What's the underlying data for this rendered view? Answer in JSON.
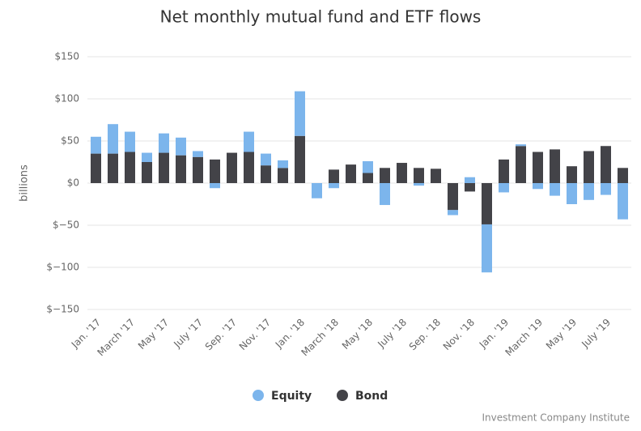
{
  "chart_data": {
    "type": "stacked_bar",
    "title": "Net monthly mutual fund and ETF flows",
    "y_label": "billions",
    "credit": "Investment Company Institute",
    "categories": [
      "Jan. '17",
      null,
      "March '17",
      null,
      "May '17",
      null,
      "July '17",
      null,
      "Sep. '17",
      null,
      "Nov. '17",
      null,
      "Jan. '18",
      null,
      "March '18",
      null,
      "May '18",
      null,
      "July '18",
      null,
      "Sep. '18",
      null,
      "Nov. '18",
      null,
      "Jan. '19",
      null,
      "March '19",
      null,
      "May '19",
      null,
      "July '19",
      null
    ],
    "series": [
      {
        "name": "Equity",
        "color": "#7cb5ec",
        "values": [
          20,
          35,
          24,
          11,
          23,
          21,
          7,
          -6,
          0,
          24,
          14,
          9,
          53,
          -18,
          -6,
          0,
          14,
          -26,
          0,
          -3,
          0,
          -6,
          7,
          -57,
          -11,
          2,
          -7,
          -15,
          -25,
          -20,
          -14,
          -43
        ]
      },
      {
        "name": "Bond",
        "color": "#434348",
        "values": [
          35,
          35,
          37,
          25,
          36,
          33,
          31,
          28,
          36,
          37,
          21,
          18,
          56,
          0,
          16,
          22,
          12,
          18,
          24,
          18,
          17,
          -32,
          -10,
          -49,
          28,
          44,
          37,
          40,
          20,
          38,
          44,
          18
        ]
      }
    ],
    "ylim": [
      -150,
      150
    ],
    "yticks": [
      {
        "value": -150,
        "label": "$−150"
      },
      {
        "value": -100,
        "label": "$−100"
      },
      {
        "value": -50,
        "label": "$−50"
      },
      {
        "value": 0,
        "label": "$0"
      },
      {
        "value": 50,
        "label": "$50"
      },
      {
        "value": 100,
        "label": "$100"
      },
      {
        "value": 150,
        "label": "$150"
      }
    ],
    "grid": true,
    "legend": "bottom"
  }
}
